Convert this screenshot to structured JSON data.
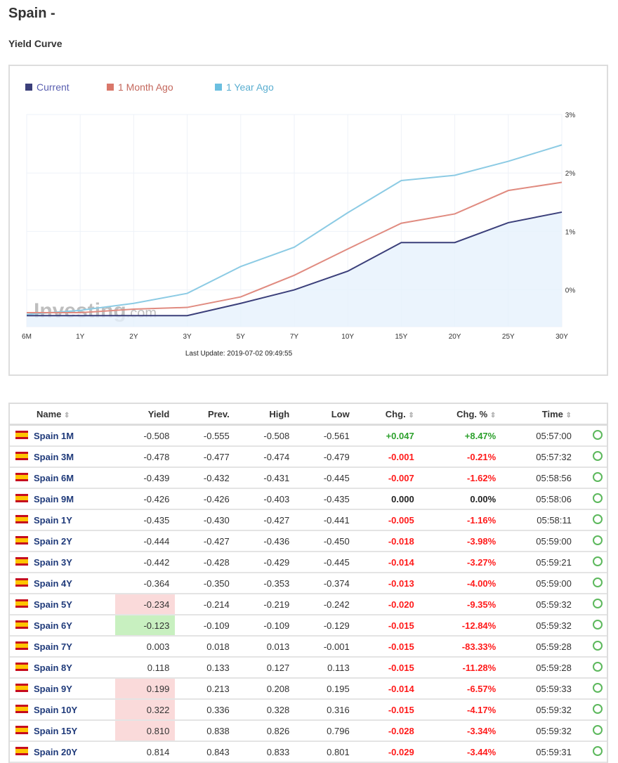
{
  "header": {
    "title": "Spain -",
    "subtitle": "Yield Curve"
  },
  "chart_data": {
    "type": "line",
    "categories": [
      "6M",
      "1Y",
      "2Y",
      "3Y",
      "5Y",
      "7Y",
      "10Y",
      "15Y",
      "20Y",
      "25Y",
      "30Y"
    ],
    "series": [
      {
        "name": "Current",
        "color": "#3b3f7a",
        "values": [
          -0.44,
          -0.44,
          -0.44,
          -0.44,
          -0.23,
          0.0,
          0.32,
          0.81,
          0.81,
          1.15,
          1.33
        ]
      },
      {
        "name": "1 Month Ago",
        "color": "#e08b80",
        "values": [
          -0.39,
          -0.39,
          -0.33,
          -0.3,
          -0.12,
          0.25,
          0.7,
          1.14,
          1.3,
          1.7,
          1.84
        ]
      },
      {
        "name": "1 Year Ago",
        "color": "#8ccbe4",
        "values": [
          -0.42,
          -0.35,
          -0.23,
          -0.06,
          0.4,
          0.73,
          1.32,
          1.87,
          1.96,
          2.2,
          2.48
        ]
      }
    ],
    "yticks": [
      "0%",
      "1%",
      "2%",
      "3%"
    ],
    "ylim": [
      -0.63,
      3
    ],
    "grid": true,
    "legend": "top-left",
    "area_fill_series": "Current",
    "watermark": "Investing.com",
    "footer": "Last Update: 2019-07-02 09:49:55"
  },
  "table": {
    "columns": [
      "Name",
      "Yield",
      "Prev.",
      "High",
      "Low",
      "Chg.",
      "Chg. %",
      "Time"
    ],
    "rows": [
      {
        "name": "Spain 1M",
        "yield": "-0.508",
        "prev": "-0.555",
        "high": "-0.508",
        "low": "-0.561",
        "chg": "+0.047",
        "chgp": "+8.47%",
        "time": "05:57:00",
        "dir": "up",
        "hl": ""
      },
      {
        "name": "Spain 3M",
        "yield": "-0.478",
        "prev": "-0.477",
        "high": "-0.474",
        "low": "-0.479",
        "chg": "-0.001",
        "chgp": "-0.21%",
        "time": "05:57:32",
        "dir": "down",
        "hl": ""
      },
      {
        "name": "Spain 6M",
        "yield": "-0.439",
        "prev": "-0.432",
        "high": "-0.431",
        "low": "-0.445",
        "chg": "-0.007",
        "chgp": "-1.62%",
        "time": "05:58:56",
        "dir": "down",
        "hl": ""
      },
      {
        "name": "Spain 9M",
        "yield": "-0.426",
        "prev": "-0.426",
        "high": "-0.403",
        "low": "-0.435",
        "chg": "0.000",
        "chgp": "0.00%",
        "time": "05:58:06",
        "dir": "flat",
        "hl": ""
      },
      {
        "name": "Spain 1Y",
        "yield": "-0.435",
        "prev": "-0.430",
        "high": "-0.427",
        "low": "-0.441",
        "chg": "-0.005",
        "chgp": "-1.16%",
        "time": "05:58:11",
        "dir": "down",
        "hl": ""
      },
      {
        "name": "Spain 2Y",
        "yield": "-0.444",
        "prev": "-0.427",
        "high": "-0.436",
        "low": "-0.450",
        "chg": "-0.018",
        "chgp": "-3.98%",
        "time": "05:59:00",
        "dir": "down",
        "hl": ""
      },
      {
        "name": "Spain 3Y",
        "yield": "-0.442",
        "prev": "-0.428",
        "high": "-0.429",
        "low": "-0.445",
        "chg": "-0.014",
        "chgp": "-3.27%",
        "time": "05:59:21",
        "dir": "down",
        "hl": ""
      },
      {
        "name": "Spain 4Y",
        "yield": "-0.364",
        "prev": "-0.350",
        "high": "-0.353",
        "low": "-0.374",
        "chg": "-0.013",
        "chgp": "-4.00%",
        "time": "05:59:00",
        "dir": "down",
        "hl": ""
      },
      {
        "name": "Spain 5Y",
        "yield": "-0.234",
        "prev": "-0.214",
        "high": "-0.219",
        "low": "-0.242",
        "chg": "-0.020",
        "chgp": "-9.35%",
        "time": "05:59:32",
        "dir": "down",
        "hl": "red"
      },
      {
        "name": "Spain 6Y",
        "yield": "-0.123",
        "prev": "-0.109",
        "high": "-0.109",
        "low": "-0.129",
        "chg": "-0.015",
        "chgp": "-12.84%",
        "time": "05:59:32",
        "dir": "down",
        "hl": "green"
      },
      {
        "name": "Spain 7Y",
        "yield": "0.003",
        "prev": "0.018",
        "high": "0.013",
        "low": "-0.001",
        "chg": "-0.015",
        "chgp": "-83.33%",
        "time": "05:59:28",
        "dir": "down",
        "hl": ""
      },
      {
        "name": "Spain 8Y",
        "yield": "0.118",
        "prev": "0.133",
        "high": "0.127",
        "low": "0.113",
        "chg": "-0.015",
        "chgp": "-11.28%",
        "time": "05:59:28",
        "dir": "down",
        "hl": ""
      },
      {
        "name": "Spain 9Y",
        "yield": "0.199",
        "prev": "0.213",
        "high": "0.208",
        "low": "0.195",
        "chg": "-0.014",
        "chgp": "-6.57%",
        "time": "05:59:33",
        "dir": "down",
        "hl": "red"
      },
      {
        "name": "Spain 10Y",
        "yield": "0.322",
        "prev": "0.336",
        "high": "0.328",
        "low": "0.316",
        "chg": "-0.015",
        "chgp": "-4.17%",
        "time": "05:59:32",
        "dir": "down",
        "hl": "red"
      },
      {
        "name": "Spain 15Y",
        "yield": "0.810",
        "prev": "0.838",
        "high": "0.826",
        "low": "0.796",
        "chg": "-0.028",
        "chgp": "-3.34%",
        "time": "05:59:32",
        "dir": "down",
        "hl": "red"
      },
      {
        "name": "Spain 20Y",
        "yield": "0.814",
        "prev": "0.843",
        "high": "0.833",
        "low": "0.801",
        "chg": "-0.029",
        "chgp": "-3.44%",
        "time": "05:59:31",
        "dir": "down",
        "hl": ""
      }
    ]
  }
}
